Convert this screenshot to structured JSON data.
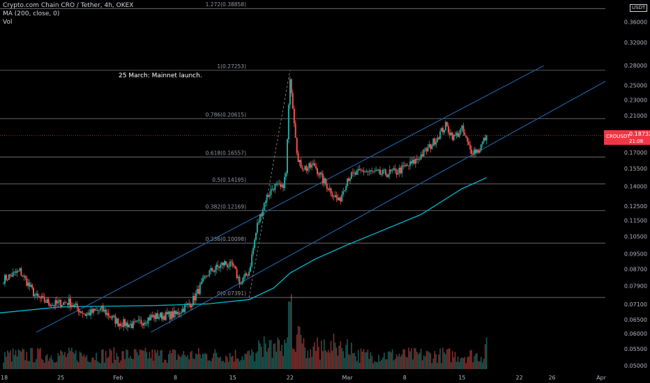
{
  "legend": {
    "title": "Crypto.com Chain CRO / Tether, 4h, OKEX",
    "ma": "MA (200, close, 0)",
    "vol": "Vol"
  },
  "annotation": "25 March: Mainnet launch.",
  "price_tag": {
    "symbol": "CROUSDT",
    "price": "0.18732",
    "countdown": "21:08"
  },
  "unit": "USDT",
  "colors": {
    "background": "#000000",
    "up": "#26a69a",
    "down": "#ef5350",
    "ma": "#00bcd4",
    "channel": "#1e5f9c",
    "fib": "#b2b5be",
    "price_line": "#f23645"
  },
  "chart_data": {
    "type": "candlestick",
    "y_scale": "log",
    "ylim": [
      0.048,
      0.4
    ],
    "y_ticks": [
      "0.40000",
      "0.36000",
      "0.32000",
      "0.28000",
      "0.25000",
      "0.23000",
      "0.21000",
      "0.19000",
      "0.17000",
      "0.15500",
      "0.14000",
      "0.12500",
      "0.11500",
      "0.10500",
      "0.09500",
      "0.08700",
      "0.07900",
      "0.07100",
      "0.06500",
      "0.06000",
      "0.05500",
      "0.05000"
    ],
    "x_ticks": [
      {
        "label": "18",
        "date": "2021-01-18"
      },
      {
        "label": "25",
        "date": "2021-01-25"
      },
      {
        "label": "Feb",
        "date": "2021-02-01"
      },
      {
        "label": "8",
        "date": "2021-02-08"
      },
      {
        "label": "15",
        "date": "2021-02-15"
      },
      {
        "label": "22",
        "date": "2021-02-22"
      },
      {
        "label": "Mar",
        "date": "2021-03-01"
      },
      {
        "label": "8",
        "date": "2021-03-08"
      },
      {
        "label": "15",
        "date": "2021-03-15"
      },
      {
        "label": "22",
        "date": "2021-03-22"
      },
      {
        "label": "26",
        "date": "2021-03-26"
      },
      {
        "label": "Apr",
        "date": "2021-04-01"
      }
    ],
    "fibonacci": [
      {
        "label": "1.272(0.38858)",
        "value": 0.38858
      },
      {
        "label": "1(0.27253)",
        "value": 0.27253
      },
      {
        "label": "0.786(0.20615)",
        "value": 0.20615
      },
      {
        "label": "0.618(0.16557)",
        "value": 0.16557
      },
      {
        "label": "0.5(0.14195)",
        "value": 0.14195
      },
      {
        "label": "0.382(0.12169)",
        "value": 0.12169
      },
      {
        "label": "0.236(0.10098)",
        "value": 0.10098
      },
      {
        "label": "0(0.07391)",
        "value": 0.07391
      }
    ],
    "last_price": 0.18732,
    "price_keypoints": [
      {
        "date": "2021-01-18",
        "price": 0.082
      },
      {
        "date": "2021-01-20",
        "price": 0.086
      },
      {
        "date": "2021-01-22",
        "price": 0.074
      },
      {
        "date": "2021-01-24",
        "price": 0.071
      },
      {
        "date": "2021-01-26",
        "price": 0.072
      },
      {
        "date": "2021-01-28",
        "price": 0.067
      },
      {
        "date": "2021-01-30",
        "price": 0.069
      },
      {
        "date": "2021-02-01",
        "price": 0.064
      },
      {
        "date": "2021-02-03",
        "price": 0.063
      },
      {
        "date": "2021-02-05",
        "price": 0.066
      },
      {
        "date": "2021-02-08",
        "price": 0.067
      },
      {
        "date": "2021-02-10",
        "price": 0.072
      },
      {
        "date": "2021-02-12",
        "price": 0.085
      },
      {
        "date": "2021-02-14",
        "price": 0.09
      },
      {
        "date": "2021-02-15",
        "price": 0.088
      },
      {
        "date": "2021-02-16",
        "price": 0.08
      },
      {
        "date": "2021-02-17",
        "price": 0.086
      },
      {
        "date": "2021-02-18",
        "price": 0.112
      },
      {
        "date": "2021-02-19",
        "price": 0.13
      },
      {
        "date": "2021-02-20",
        "price": 0.14
      },
      {
        "date": "2021-02-21",
        "price": 0.138
      },
      {
        "date": "2021-02-21T12:00",
        "price": 0.15
      },
      {
        "date": "2021-02-22",
        "price": 0.265
      },
      {
        "date": "2021-02-22T12:00",
        "price": 0.205
      },
      {
        "date": "2021-02-23",
        "price": 0.16
      },
      {
        "date": "2021-02-24",
        "price": 0.155
      },
      {
        "date": "2021-02-25",
        "price": 0.158
      },
      {
        "date": "2021-02-26",
        "price": 0.145
      },
      {
        "date": "2021-02-28",
        "price": 0.128
      },
      {
        "date": "2021-03-01",
        "price": 0.147
      },
      {
        "date": "2021-03-03",
        "price": 0.153
      },
      {
        "date": "2021-03-05",
        "price": 0.15
      },
      {
        "date": "2021-03-07",
        "price": 0.152
      },
      {
        "date": "2021-03-09",
        "price": 0.16
      },
      {
        "date": "2021-03-11",
        "price": 0.175
      },
      {
        "date": "2021-03-13",
        "price": 0.198
      },
      {
        "date": "2021-03-14",
        "price": 0.185
      },
      {
        "date": "2021-03-15",
        "price": 0.194
      },
      {
        "date": "2021-03-16",
        "price": 0.172
      },
      {
        "date": "2021-03-17",
        "price": 0.172
      },
      {
        "date": "2021-03-18",
        "price": 0.18732
      }
    ],
    "ma200_keypoints": [
      {
        "date": "2021-01-14",
        "price": 0.0665
      },
      {
        "date": "2021-01-25",
        "price": 0.07
      },
      {
        "date": "2021-02-05",
        "price": 0.0705
      },
      {
        "date": "2021-02-12",
        "price": 0.0712
      },
      {
        "date": "2021-02-17",
        "price": 0.073
      },
      {
        "date": "2021-02-20",
        "price": 0.078
      },
      {
        "date": "2021-02-22",
        "price": 0.085
      },
      {
        "date": "2021-02-25",
        "price": 0.092
      },
      {
        "date": "2021-03-01",
        "price": 0.1
      },
      {
        "date": "2021-03-05",
        "price": 0.108
      },
      {
        "date": "2021-03-10",
        "price": 0.119
      },
      {
        "date": "2021-03-15",
        "price": 0.138
      },
      {
        "date": "2021-03-18",
        "price": 0.147
      }
    ],
    "channel_lines": [
      {
        "from": {
          "date": "2021-01-22",
          "price": 0.0605
        },
        "to": {
          "date": "2021-03-25",
          "price": 0.28
        }
      },
      {
        "from": {
          "date": "2021-02-05",
          "price": 0.0605
        },
        "to": {
          "date": "2021-04-05",
          "price": 0.28
        }
      }
    ],
    "volume_range": [
      0,
      1
    ],
    "volume_spikes": [
      {
        "date": "2021-02-22",
        "level": 1.0
      },
      {
        "date": "2021-02-23",
        "level": 0.55
      },
      {
        "date": "2021-03-18",
        "level": 0.45
      }
    ]
  }
}
